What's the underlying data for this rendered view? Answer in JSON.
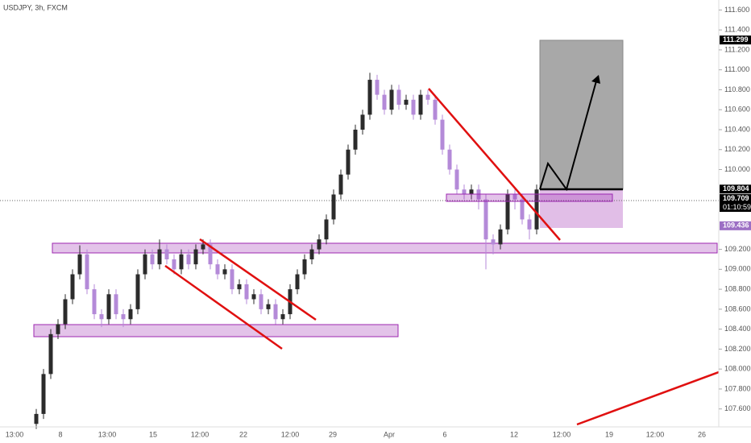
{
  "chart_data": {
    "type": "candlestick",
    "title": "USDJPY, 3h, FXCM",
    "up_color": "#2b2b2b",
    "down_color": "#b48ad8",
    "open": [
      107.45,
      107.55,
      107.95,
      108.35,
      108.45,
      108.7,
      108.95,
      109.15,
      108.8,
      108.55,
      108.5,
      108.75,
      108.55,
      108.5,
      108.6,
      108.95,
      109.15,
      109.05,
      109.2,
      109.1,
      109.0,
      109.15,
      109.05,
      109.2,
      109.25,
      109.05,
      108.95,
      109.0,
      108.8,
      108.85,
      108.7,
      108.75,
      108.6,
      108.65,
      108.5,
      108.55,
      108.8,
      108.95,
      109.1,
      109.2,
      109.3,
      109.5,
      109.75,
      109.95,
      110.2,
      110.4,
      110.55,
      110.9,
      110.75,
      110.6,
      110.8,
      110.65,
      110.7,
      110.55,
      110.75,
      110.7,
      110.5,
      110.2,
      110.0,
      109.8,
      109.75,
      109.8,
      109.7,
      109.3,
      109.25,
      109.4,
      109.75,
      109.7,
      109.5,
      109.4
    ],
    "high": [
      107.6,
      108.0,
      108.4,
      108.5,
      108.75,
      109.0,
      109.24,
      109.2,
      108.85,
      108.6,
      108.8,
      108.8,
      108.6,
      108.65,
      109.0,
      109.2,
      109.2,
      109.3,
      109.25,
      109.15,
      109.2,
      109.2,
      109.25,
      109.3,
      109.3,
      109.1,
      109.05,
      109.05,
      108.9,
      108.9,
      108.8,
      108.8,
      108.7,
      108.7,
      108.6,
      108.85,
      109.0,
      109.15,
      109.25,
      109.35,
      109.55,
      109.8,
      110.0,
      110.25,
      110.45,
      110.6,
      110.97,
      110.95,
      110.8,
      110.85,
      110.85,
      110.75,
      110.75,
      110.8,
      110.8,
      110.75,
      110.55,
      110.25,
      110.05,
      109.85,
      109.85,
      109.85,
      109.75,
      109.35,
      109.45,
      109.8,
      109.8,
      109.75,
      109.55,
      109.85
    ],
    "low": [
      107.4,
      107.5,
      107.9,
      108.3,
      108.4,
      108.65,
      108.9,
      108.75,
      108.5,
      108.42,
      108.45,
      108.5,
      108.42,
      108.45,
      108.55,
      108.9,
      109.0,
      109.0,
      109.05,
      108.95,
      108.95,
      109.0,
      109.0,
      109.15,
      109.0,
      108.9,
      108.9,
      108.75,
      108.75,
      108.65,
      108.65,
      108.55,
      108.55,
      108.45,
      108.45,
      108.5,
      108.75,
      108.9,
      109.05,
      109.15,
      109.25,
      109.45,
      109.7,
      109.9,
      110.15,
      110.35,
      110.5,
      110.7,
      110.55,
      110.55,
      110.6,
      110.6,
      110.5,
      110.5,
      110.65,
      110.45,
      110.15,
      109.95,
      109.75,
      109.7,
      109.7,
      109.6,
      109.0,
      109.15,
      109.2,
      109.35,
      109.6,
      109.45,
      109.3,
      109.35
    ],
    "close": [
      107.55,
      107.95,
      108.35,
      108.45,
      108.7,
      108.95,
      109.15,
      108.8,
      108.55,
      108.5,
      108.75,
      108.55,
      108.5,
      108.6,
      108.95,
      109.15,
      109.05,
      109.2,
      109.1,
      109.0,
      109.15,
      109.05,
      109.2,
      109.25,
      109.05,
      108.95,
      109.0,
      108.8,
      108.85,
      108.7,
      108.75,
      108.6,
      108.65,
      108.5,
      108.55,
      108.8,
      108.95,
      109.1,
      109.2,
      109.3,
      109.5,
      109.75,
      109.95,
      110.2,
      110.4,
      110.55,
      110.9,
      110.75,
      110.6,
      110.8,
      110.65,
      110.7,
      110.55,
      110.75,
      110.7,
      110.5,
      110.2,
      110.0,
      109.8,
      109.75,
      109.8,
      109.7,
      109.3,
      109.25,
      109.4,
      109.75,
      109.7,
      109.5,
      109.4,
      109.8
    ],
    "ylim": [
      107.42,
      111.7
    ],
    "yticks": [
      {
        "value": 107.6,
        "label": "107.600"
      },
      {
        "value": 107.8,
        "label": "107.800"
      },
      {
        "value": 108.0,
        "label": "108.000"
      },
      {
        "value": 108.2,
        "label": "108.200"
      },
      {
        "value": 108.4,
        "label": "108.400"
      },
      {
        "value": 108.6,
        "label": "108.600"
      },
      {
        "value": 108.8,
        "label": "108.800"
      },
      {
        "value": 109.0,
        "label": "109.000"
      },
      {
        "value": 109.2,
        "label": "109.200"
      },
      {
        "value": 110.0,
        "label": "110.000"
      },
      {
        "value": 110.2,
        "label": "110.200"
      },
      {
        "value": 110.4,
        "label": "110.400"
      },
      {
        "value": 110.6,
        "label": "110.600"
      },
      {
        "value": 110.8,
        "label": "110.800"
      },
      {
        "value": 111.0,
        "label": "111.000"
      },
      {
        "value": 111.2,
        "label": "111.200"
      },
      {
        "value": 111.4,
        "label": "111.400"
      },
      {
        "value": 111.6,
        "label": "111.600"
      }
    ],
    "x_labels": [
      "13:00",
      "8",
      "13:00",
      "15",
      "12:00",
      "22",
      "12:00",
      "29",
      "Apr",
      "6",
      "12",
      "12:00",
      "19",
      "12:00",
      "26"
    ],
    "price_labels": [
      {
        "value": 111.299,
        "label": "111.299"
      },
      {
        "value": 109.804,
        "label": "109.804"
      },
      {
        "value": 109.709,
        "label": "109.709"
      },
      {
        "value": 109.436,
        "label": "109.436"
      }
    ],
    "countdown": "01:10:59"
  }
}
